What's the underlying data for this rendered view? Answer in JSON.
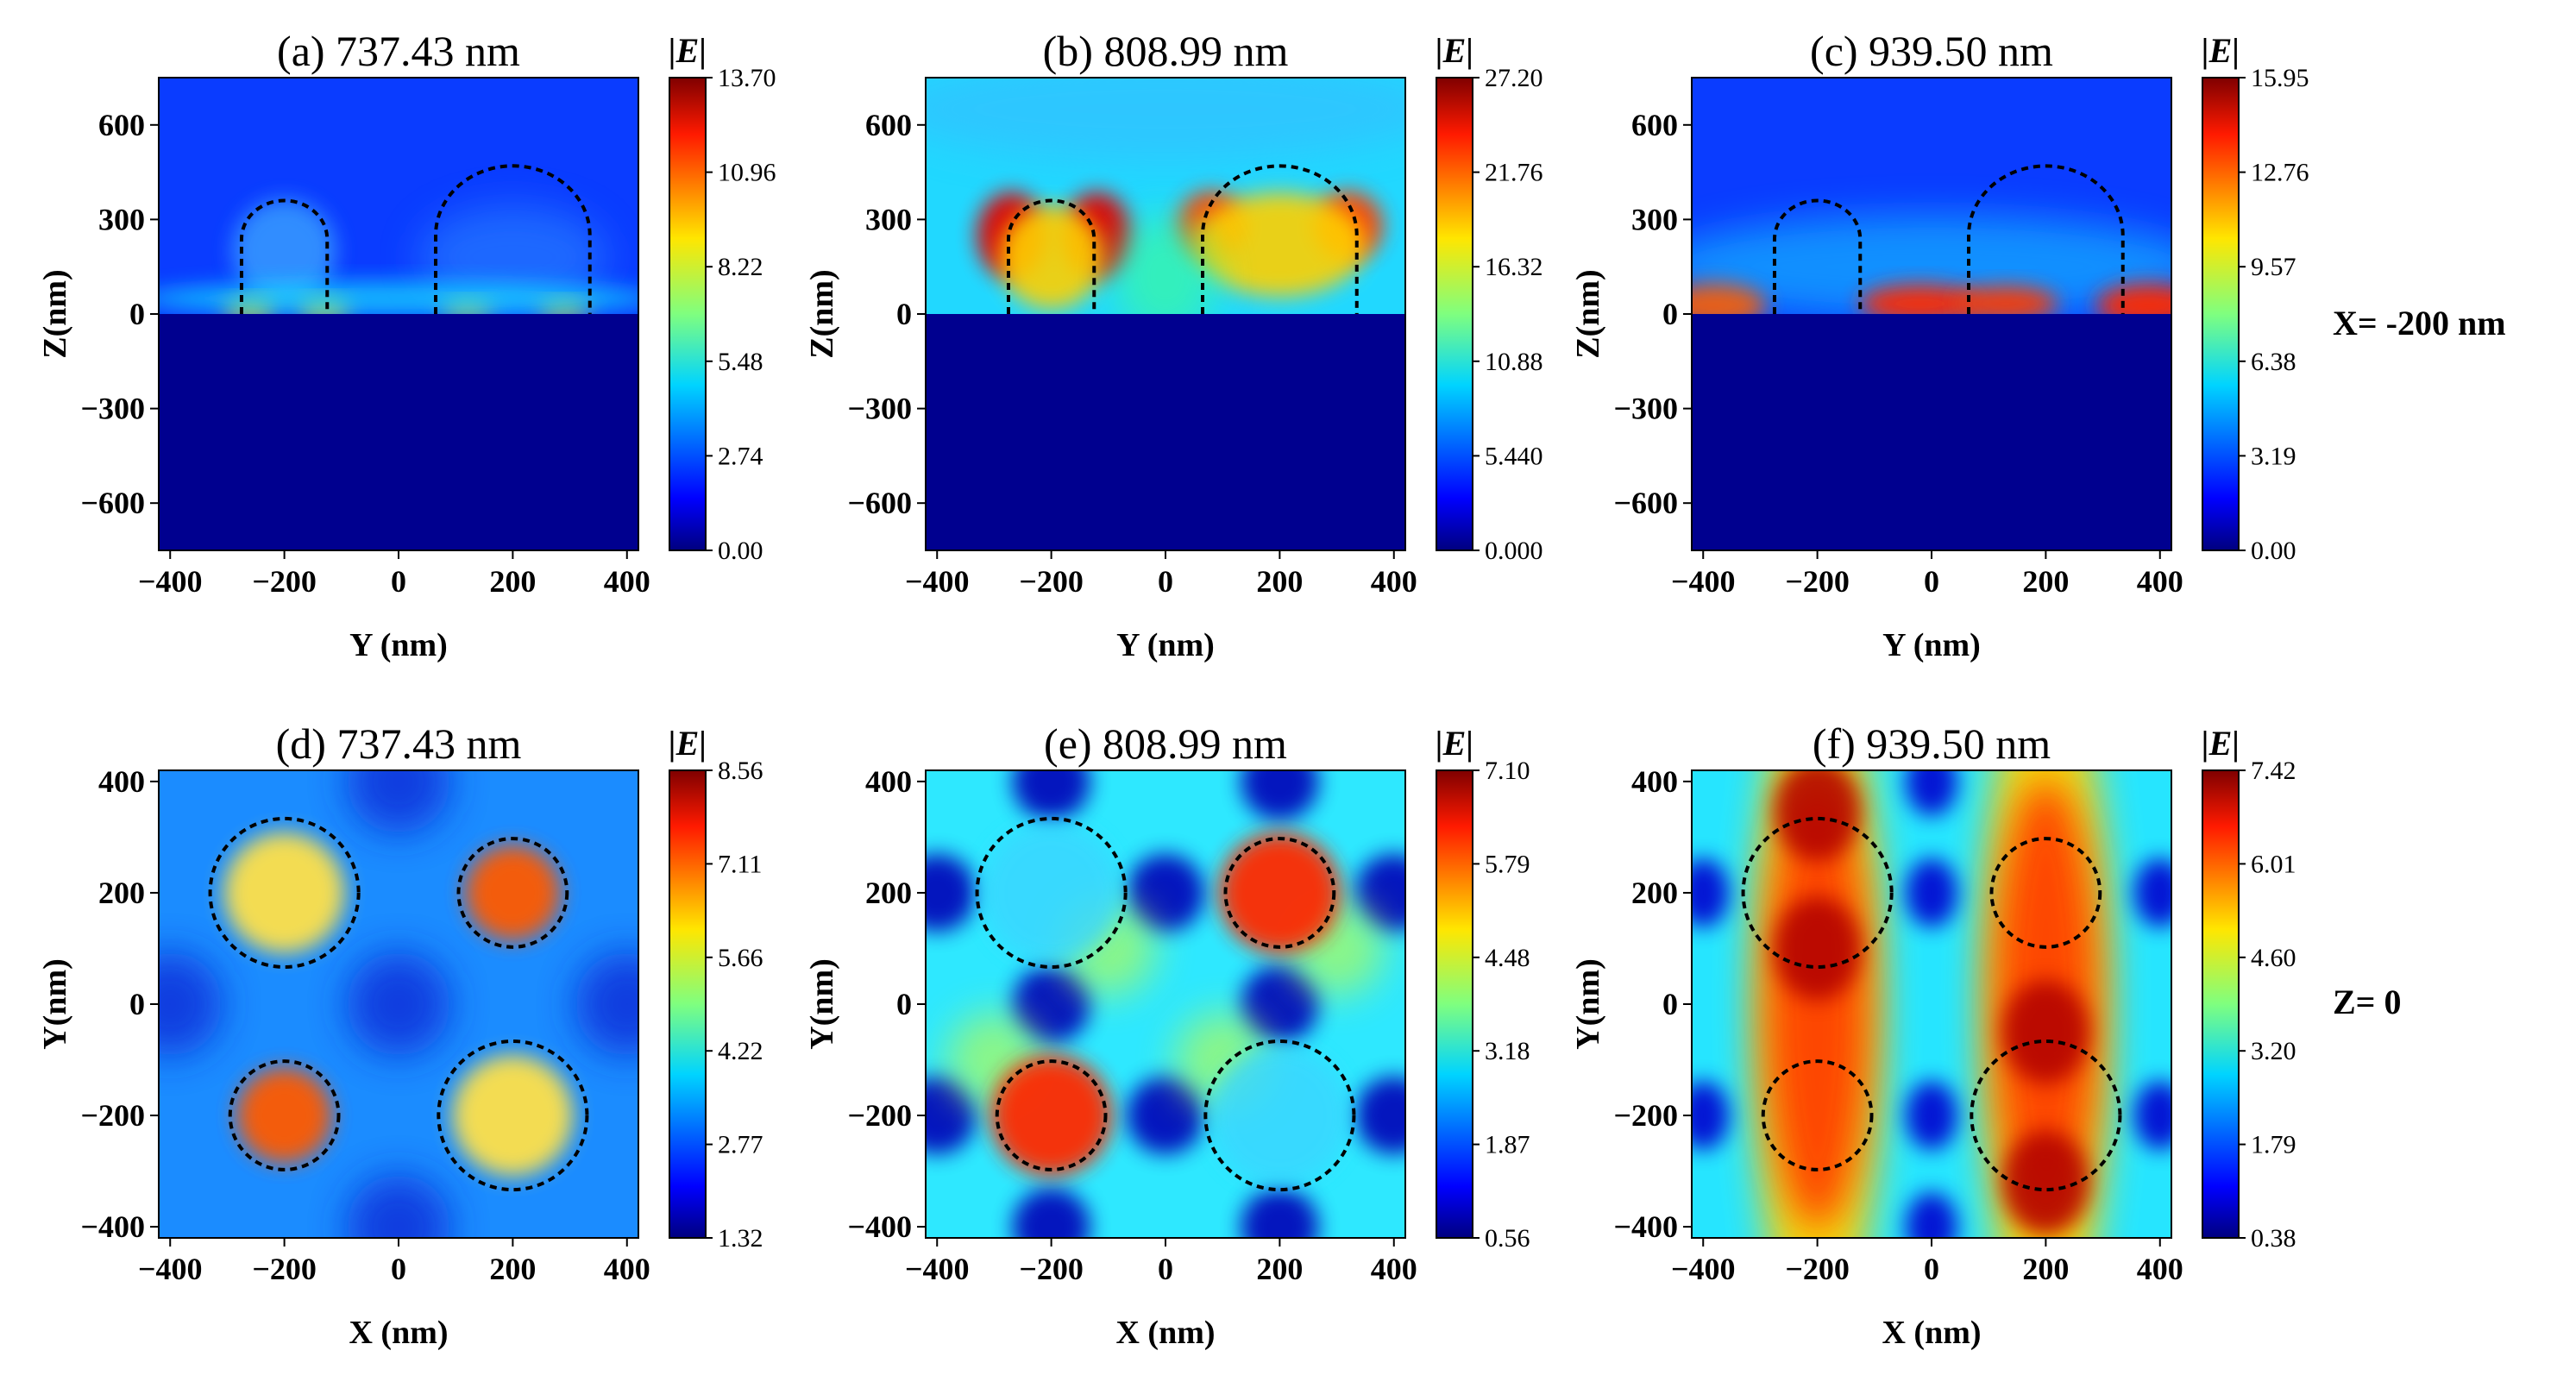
{
  "figure": {
    "row_labels": [
      "X= -200 nm",
      "Z= 0"
    ],
    "colorbar_title": "|E|"
  },
  "chart_data": [
    {
      "type": "heatmap",
      "panel": "(a)",
      "title": "(a) 737.43 nm",
      "wavelength_nm": 737.43,
      "view": "side",
      "xlabel": "Y (nm)",
      "ylabel": "Z(nm)",
      "xlim": [
        -420,
        420
      ],
      "ylim": [
        -750,
        750
      ],
      "xticks": [
        -400,
        -200,
        0,
        200,
        400
      ],
      "yticks": [
        -600,
        -300,
        0,
        300,
        600
      ],
      "colorbar": {
        "label": "|E|",
        "min": 0.0,
        "max": 13.7,
        "ticks": [
          "13.70",
          "10.96",
          "8.22",
          "5.48",
          "2.74",
          "0.00"
        ]
      },
      "particles": [
        {
          "center": -200,
          "radius": 75,
          "top": 360
        },
        {
          "center": 200,
          "radius": 135,
          "top": 470
        }
      ],
      "hotspots_desc": "weak lobes at Z≈0 near particle edges"
    },
    {
      "type": "heatmap",
      "panel": "(b)",
      "title": "(b) 808.99 nm",
      "wavelength_nm": 808.99,
      "view": "side",
      "xlabel": "Y (nm)",
      "ylabel": "Z(nm)",
      "xlim": [
        -420,
        420
      ],
      "ylim": [
        -750,
        750
      ],
      "xticks": [
        -400,
        -200,
        0,
        200,
        400
      ],
      "yticks": [
        -600,
        -300,
        0,
        300,
        600
      ],
      "colorbar": {
        "label": "|E|",
        "min": 0.0,
        "max": 27.2,
        "ticks": [
          "27.20",
          "21.76",
          "16.32",
          "10.88",
          "5.440",
          "0.000"
        ]
      },
      "particles": [
        {
          "center": -200,
          "radius": 75,
          "top": 360
        },
        {
          "center": 200,
          "radius": 135,
          "top": 470
        }
      ]
    },
    {
      "type": "heatmap",
      "panel": "(c)",
      "title": "(c) 939.50 nm",
      "wavelength_nm": 939.5,
      "view": "side",
      "xlabel": "Y (nm)",
      "ylabel": "Z(nm)",
      "xlim": [
        -420,
        420
      ],
      "ylim": [
        -750,
        750
      ],
      "xticks": [
        -400,
        -200,
        0,
        200,
        400
      ],
      "yticks": [
        -600,
        -300,
        0,
        300,
        600
      ],
      "colorbar": {
        "label": "|E|",
        "min": 0.0,
        "max": 15.95,
        "ticks": [
          "15.95",
          "12.76",
          "9.57",
          "6.38",
          "3.19",
          "0.00"
        ]
      },
      "particles": [
        {
          "center": -200,
          "radius": 75,
          "top": 360
        },
        {
          "center": 200,
          "radius": 135,
          "top": 470
        }
      ]
    },
    {
      "type": "heatmap",
      "panel": "(d)",
      "title": "(d) 737.43 nm",
      "wavelength_nm": 737.43,
      "view": "top",
      "xlabel": "X (nm)",
      "ylabel": "Y(nm)",
      "xlim": [
        -420,
        420
      ],
      "ylim": [
        -420,
        420
      ],
      "xticks": [
        -400,
        -200,
        0,
        200,
        400
      ],
      "yticks": [
        -400,
        -200,
        0,
        200,
        400
      ],
      "colorbar": {
        "label": "|E|",
        "min": 1.32,
        "max": 8.56,
        "ticks": [
          "8.56",
          "7.11",
          "5.66",
          "4.22",
          "2.77",
          "1.32"
        ]
      },
      "particles": [
        {
          "cx": -200,
          "cy": 200,
          "r": 130
        },
        {
          "cx": 200,
          "cy": 200,
          "r": 95
        },
        {
          "cx": -200,
          "cy": -200,
          "r": 95
        },
        {
          "cx": 200,
          "cy": -200,
          "r": 130
        }
      ]
    },
    {
      "type": "heatmap",
      "panel": "(e)",
      "title": "(e) 808.99 nm",
      "wavelength_nm": 808.99,
      "view": "top",
      "xlabel": "X (nm)",
      "ylabel": "Y(nm)",
      "xlim": [
        -420,
        420
      ],
      "ylim": [
        -420,
        420
      ],
      "xticks": [
        -400,
        -200,
        0,
        200,
        400
      ],
      "yticks": [
        -400,
        -200,
        0,
        200,
        400
      ],
      "colorbar": {
        "label": "|E|",
        "min": 0.56,
        "max": 7.1,
        "ticks": [
          "7.10",
          "5.79",
          "4.48",
          "3.18",
          "1.87",
          "0.56"
        ]
      },
      "particles": [
        {
          "cx": -200,
          "cy": 200,
          "r": 130
        },
        {
          "cx": 200,
          "cy": 200,
          "r": 95
        },
        {
          "cx": -200,
          "cy": -200,
          "r": 95
        },
        {
          "cx": 200,
          "cy": -200,
          "r": 130
        }
      ]
    },
    {
      "type": "heatmap",
      "panel": "(f)",
      "title": "(f) 939.50 nm",
      "wavelength_nm": 939.5,
      "view": "top",
      "xlabel": "X (nm)",
      "ylabel": "Y(nm)",
      "xlim": [
        -420,
        420
      ],
      "ylim": [
        -420,
        420
      ],
      "xticks": [
        -400,
        -200,
        0,
        200,
        400
      ],
      "yticks": [
        -400,
        -200,
        0,
        200,
        400
      ],
      "colorbar": {
        "label": "|E|",
        "min": 0.38,
        "max": 7.42,
        "ticks": [
          "7.42",
          "6.01",
          "4.60",
          "3.20",
          "1.79",
          "0.38"
        ]
      },
      "particles": [
        {
          "cx": -200,
          "cy": 200,
          "r": 130
        },
        {
          "cx": 200,
          "cy": 200,
          "r": 95
        },
        {
          "cx": -200,
          "cy": -200,
          "r": 95
        },
        {
          "cx": 200,
          "cy": -200,
          "r": 130
        }
      ]
    }
  ]
}
